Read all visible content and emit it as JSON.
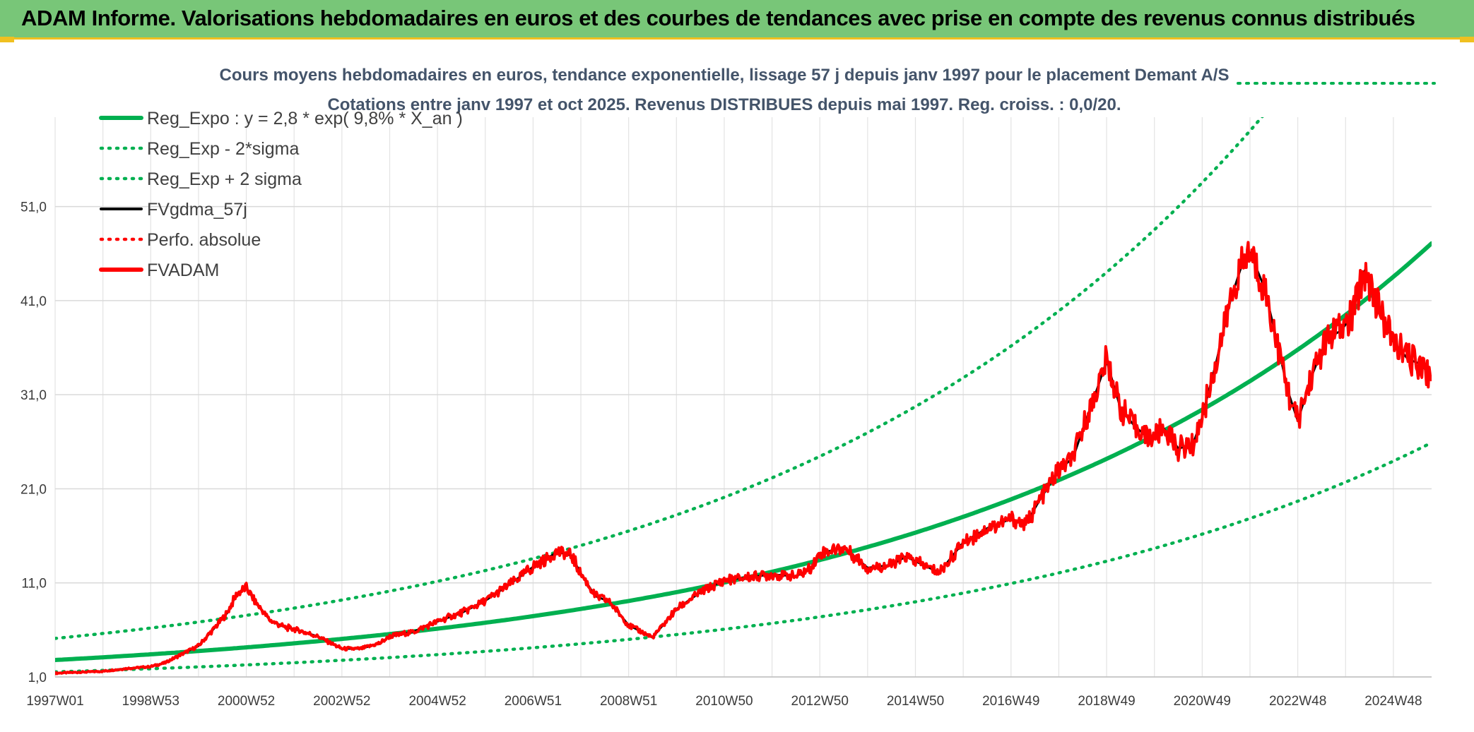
{
  "header": {
    "title": "ADAM Informe. Valorisations hebdomadaires en euros et des courbes de tendances avec prise en compte des revenus connus distribués"
  },
  "colors": {
    "header_bg": "#78c678",
    "accent": "#f0c020",
    "trend": "#00b050",
    "smooth": "#000000",
    "price": "#ff0000",
    "grid": "#d9d9d9",
    "subtitle": "#44546a"
  },
  "chart_data": {
    "type": "line",
    "subtitle_lines": [
      "Cours moyens hebdomadaires en euros, tendance exponentielle, lissage 57 j depuis janv 1997 pour le placement Demant A/S",
      "Cotations entre janv 1997 et oct 2025. Revenus DISTRIBUES depuis mai 1997. Reg. croiss. : 0,0/20."
    ],
    "y_ticks": [
      "1,0",
      "11,0",
      "21,0",
      "31,0",
      "41,0",
      "51,0"
    ],
    "y_tick_values": [
      1,
      11,
      21,
      31,
      41,
      51
    ],
    "ylim": [
      1,
      59
    ],
    "x_ticks": [
      "1997W01",
      "1998W53",
      "2000W52",
      "2002W52",
      "2004W52",
      "2006W51",
      "2008W51",
      "2010W50",
      "2012W50",
      "2014W50",
      "2016W49",
      "2018W49",
      "2020W49",
      "2022W48",
      "2024W48"
    ],
    "x_tick_years": [
      1997.0,
      1999.0,
      2001.0,
      2003.0,
      2005.0,
      2007.0,
      2009.0,
      2011.0,
      2013.0,
      2015.0,
      2017.0,
      2019.0,
      2021.0,
      2023.0,
      2025.0
    ],
    "xlim": [
      1997.0,
      2025.8
    ],
    "grid": true,
    "legend_position": "top-left",
    "series": [
      {
        "name": "Reg_Expo : y = 2,8 * exp( 9,8% *  X_an )",
        "style": "solid-thick",
        "color": "#00b050",
        "formula": {
          "a": 2.8,
          "b": 0.098,
          "factor": 1.0
        }
      },
      {
        "name": "Reg_Exp - 2*sigma",
        "style": "dotted",
        "color": "#00b050",
        "formula": {
          "a": 2.8,
          "b": 0.098,
          "factor": 0.55
        }
      },
      {
        "name": "Reg_Exp + 2 sigma",
        "style": "dotted",
        "color": "#00b050",
        "formula": {
          "a": 2.8,
          "b": 0.098,
          "factor": 1.82
        }
      },
      {
        "name": "FVgdma_57j",
        "style": "solid",
        "color": "#000000",
        "x": [
          1997.0,
          1997.5,
          1998.0,
          1998.5,
          1999.0,
          1999.3,
          1999.6,
          2000.0,
          2000.3,
          2000.6,
          2000.8,
          2001.0,
          2001.2,
          2001.5,
          2001.8,
          2002.0,
          2002.5,
          2003.0,
          2003.4,
          2003.8,
          2004.0,
          2004.5,
          2005.0,
          2005.5,
          2006.0,
          2006.5,
          2007.0,
          2007.3,
          2007.5,
          2007.8,
          2008.0,
          2008.3,
          2008.6,
          2009.0,
          2009.5,
          2010.0,
          2010.5,
          2011.0,
          2011.5,
          2012.0,
          2012.5,
          2012.8,
          2013.0,
          2013.5,
          2014.0,
          2014.5,
          2014.8,
          2015.0,
          2015.5,
          2016.0,
          2016.5,
          2017.0,
          2017.3,
          2017.6,
          2018.0,
          2018.3,
          2018.5,
          2018.8,
          2019.0,
          2019.3,
          2019.6,
          2019.9,
          2020.2,
          2020.5,
          2020.8,
          2021.0,
          2021.3,
          2021.6,
          2021.8,
          2022.0,
          2022.3,
          2022.5,
          2022.8,
          2023.0,
          2023.3,
          2023.6,
          2023.9,
          2024.1,
          2024.4,
          2024.7,
          2025.0,
          2025.3,
          2025.6,
          2025.8
        ],
        "y": [
          1.4,
          1.5,
          1.6,
          1.9,
          2.1,
          2.5,
          3.3,
          4.3,
          6.0,
          7.8,
          9.8,
          10.5,
          8.9,
          7.0,
          6.3,
          6.1,
          5.3,
          4.0,
          4.0,
          4.6,
          5.3,
          5.8,
          6.9,
          7.8,
          9.1,
          10.8,
          12.7,
          13.6,
          14.3,
          13.9,
          12.0,
          9.6,
          9.0,
          6.5,
          5.2,
          8.2,
          10.0,
          11.3,
          11.6,
          11.9,
          11.7,
          12.5,
          14.1,
          14.8,
          12.6,
          12.9,
          13.8,
          13.3,
          12.1,
          15.3,
          16.8,
          17.8,
          17.2,
          19.8,
          23.0,
          24.3,
          27.3,
          31.6,
          34.6,
          29.4,
          27.6,
          26.3,
          27.4,
          25.3,
          25.6,
          28.6,
          34.6,
          41.2,
          44.3,
          46.1,
          42.4,
          38.1,
          31.3,
          28.2,
          33.1,
          36.9,
          37.8,
          39.1,
          44.2,
          40.3,
          36.6,
          34.8,
          34.2,
          32.6
        ]
      },
      {
        "name": "Perfo. absolue",
        "style": "dotted",
        "color": "#ff0000"
      },
      {
        "name": "FVADAM",
        "style": "solid-thick",
        "color": "#ff0000",
        "x": [
          1997.0,
          1997.5,
          1998.0,
          1998.5,
          1999.0,
          1999.3,
          1999.6,
          2000.0,
          2000.3,
          2000.6,
          2000.8,
          2001.0,
          2001.2,
          2001.5,
          2001.8,
          2002.0,
          2002.5,
          2003.0,
          2003.4,
          2003.8,
          2004.0,
          2004.5,
          2005.0,
          2005.5,
          2006.0,
          2006.5,
          2007.0,
          2007.3,
          2007.5,
          2007.8,
          2008.0,
          2008.3,
          2008.6,
          2009.0,
          2009.5,
          2010.0,
          2010.5,
          2011.0,
          2011.5,
          2012.0,
          2012.5,
          2012.8,
          2013.0,
          2013.5,
          2014.0,
          2014.5,
          2014.8,
          2015.0,
          2015.5,
          2016.0,
          2016.5,
          2017.0,
          2017.3,
          2017.6,
          2018.0,
          2018.3,
          2018.5,
          2018.8,
          2019.0,
          2019.3,
          2019.6,
          2019.9,
          2020.2,
          2020.5,
          2020.8,
          2021.0,
          2021.3,
          2021.6,
          2021.8,
          2022.0,
          2022.3,
          2022.5,
          2022.8,
          2023.0,
          2023.3,
          2023.6,
          2023.9,
          2024.1,
          2024.4,
          2024.7,
          2025.0,
          2025.3,
          2025.6,
          2025.8
        ],
        "y": [
          1.4,
          1.5,
          1.6,
          1.9,
          2.1,
          2.5,
          3.3,
          4.3,
          6.0,
          7.8,
          9.8,
          10.5,
          8.9,
          7.0,
          6.3,
          6.1,
          5.3,
          4.0,
          4.0,
          4.6,
          5.3,
          5.8,
          6.9,
          7.8,
          9.1,
          10.8,
          12.7,
          13.6,
          14.3,
          13.9,
          12.0,
          9.6,
          9.0,
          6.5,
          5.2,
          8.2,
          10.0,
          11.3,
          11.6,
          11.9,
          11.7,
          12.5,
          14.1,
          14.8,
          12.6,
          12.9,
          13.8,
          13.3,
          12.1,
          15.3,
          16.8,
          17.8,
          17.2,
          19.8,
          23.0,
          24.3,
          27.3,
          31.6,
          34.6,
          29.4,
          27.6,
          26.3,
          27.4,
          25.3,
          25.6,
          28.6,
          34.6,
          41.2,
          44.3,
          46.1,
          42.4,
          38.1,
          31.3,
          28.2,
          33.1,
          36.9,
          37.8,
          39.1,
          44.2,
          40.3,
          36.6,
          34.8,
          34.2,
          32.6
        ]
      }
    ]
  }
}
